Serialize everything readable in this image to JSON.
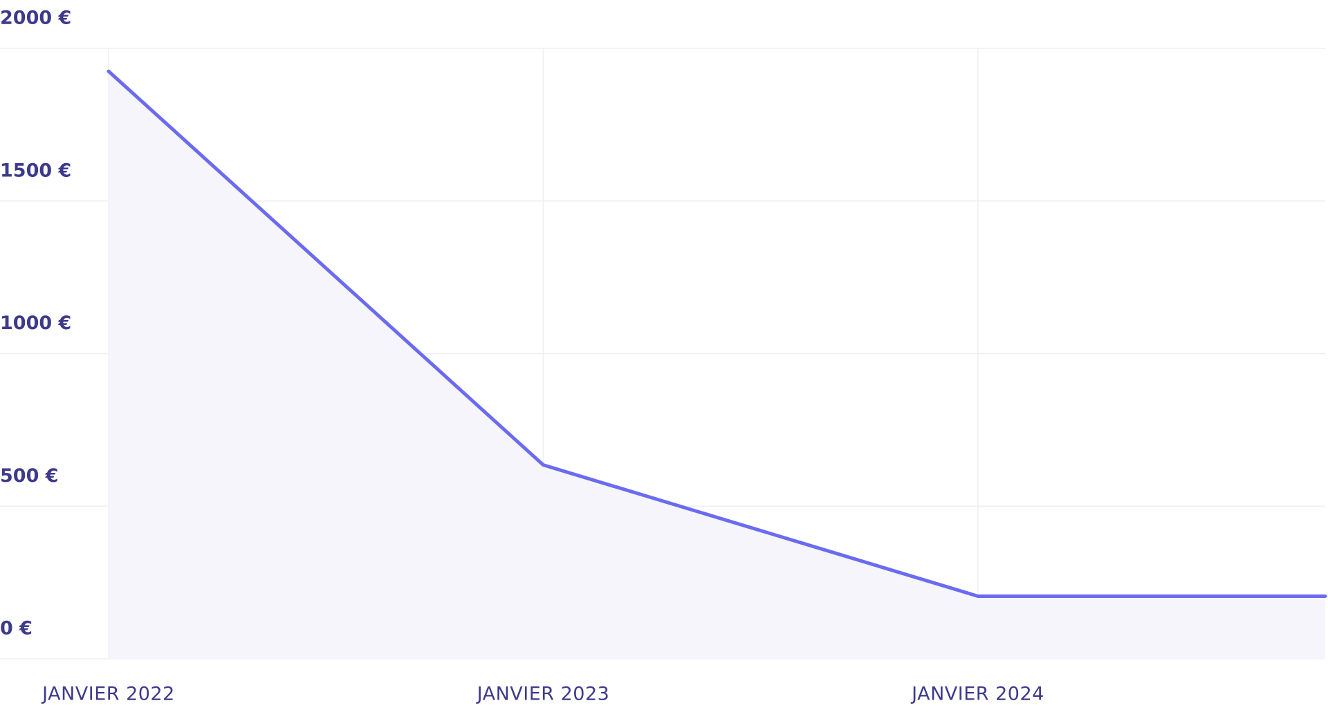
{
  "chart_data": {
    "type": "area",
    "categories": [
      "JANVIER 2022",
      "JANVIER 2023",
      "JANVIER 2024",
      null
    ],
    "series": [
      {
        "color": "#6b6bf0",
        "values": [
          1925,
          635,
          205,
          205
        ]
      }
    ],
    "ylim": [
      0,
      2000
    ],
    "yticks": [
      {
        "value": 0,
        "label": "0 €"
      },
      {
        "value": 500,
        "label": "500 €"
      },
      {
        "value": 1000,
        "label": "1000 €"
      },
      {
        "value": 1500,
        "label": "1500 €"
      },
      {
        "value": 2000,
        "label": "2000 €"
      }
    ],
    "grid": true
  }
}
